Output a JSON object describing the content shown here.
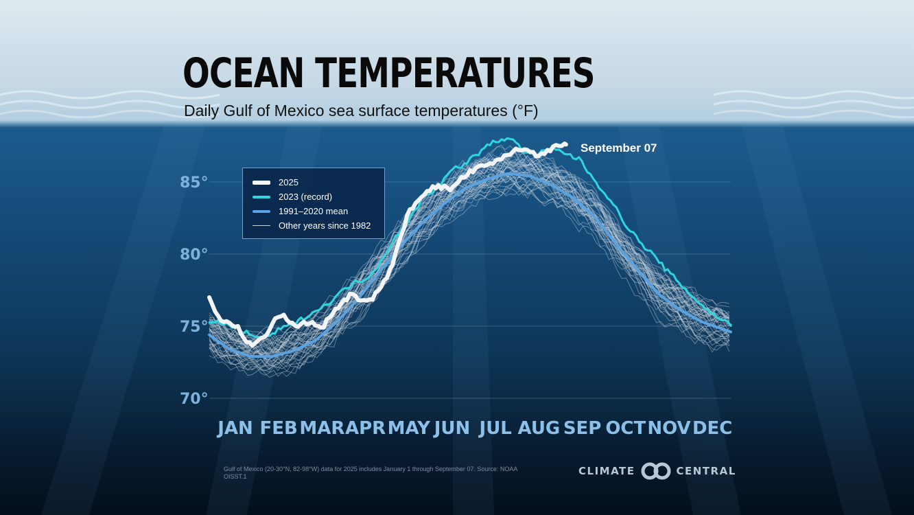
{
  "header": {
    "title": "OCEAN TEMPERATURES",
    "subtitle": "Daily Gulf of Mexico sea surface temperatures (°F)"
  },
  "colors": {
    "y2025": "#f2f4f6",
    "y2023": "#2fd6df",
    "mean": "#5aa2e0",
    "other": "#c8d3dd",
    "axis_label": "#7fb2da",
    "month_label": "#8cc0e8"
  },
  "legend": {
    "items": [
      {
        "label": "2025",
        "color": "#f2f4f6"
      },
      {
        "label": "2023 (record)",
        "color": "#2fd6df"
      },
      {
        "label": "1991–2020 mean",
        "color": "#5aa2e0"
      },
      {
        "label": "Other years since 1982",
        "color": "#c8d3dd"
      }
    ]
  },
  "callout": "September 07",
  "footer": {
    "note": "Gulf of Mexico (20-30°N, 82-98°W) data for 2025 includes January 1 through September 07. Source: NOAA OISST.1",
    "brand_left": "CLIMATE",
    "brand_right": "CENTRAL"
  },
  "chart_data": {
    "type": "line",
    "title": "OCEAN TEMPERATURES",
    "subtitle": "Daily Gulf of Mexico sea surface temperatures (°F)",
    "xlabel": "",
    "ylabel": "",
    "ylim": [
      69,
      88
    ],
    "yticks": [
      70,
      75,
      80,
      85
    ],
    "ytick_labels": [
      "70°",
      "75°",
      "80°",
      "85°"
    ],
    "grid": true,
    "legend_position": "top-left",
    "categories": [
      "JAN",
      "FEB",
      "MAR",
      "APR",
      "MAY",
      "JUN",
      "JUL",
      "AUG",
      "SEP",
      "OCT",
      "NOV",
      "DEC"
    ],
    "series": [
      {
        "name": "2025",
        "x": [
          1,
          10,
          20,
          30,
          40,
          50,
          60,
          70,
          80,
          90,
          100,
          110,
          120,
          130,
          140,
          150,
          160,
          170,
          180,
          190,
          200,
          210,
          220,
          230,
          240,
          250
        ],
        "values": [
          76.9,
          75.3,
          75.0,
          73.6,
          74.3,
          75.9,
          75.0,
          75.3,
          74.9,
          76.3,
          77.2,
          76.6,
          77.4,
          79.6,
          82.9,
          84.2,
          84.7,
          84.5,
          85.5,
          86.0,
          86.3,
          87.0,
          87.3,
          86.9,
          87.3,
          87.6
        ]
      },
      {
        "name": "2023 (record)",
        "x": [
          1,
          10,
          20,
          30,
          40,
          50,
          60,
          70,
          80,
          90,
          100,
          110,
          120,
          130,
          140,
          150,
          160,
          170,
          180,
          190,
          200,
          210,
          220,
          230,
          240,
          250,
          260,
          270,
          280,
          290,
          300,
          310,
          320,
          330,
          340,
          350,
          365
        ],
        "values": [
          75.1,
          75.3,
          74.8,
          74.4,
          74.1,
          74.8,
          75.1,
          75.8,
          76.3,
          77.1,
          77.9,
          78.3,
          79.3,
          81.1,
          82.3,
          83.9,
          84.6,
          85.8,
          86.3,
          87.1,
          87.8,
          88.1,
          87.2,
          86.9,
          87.3,
          87.0,
          86.5,
          85.1,
          83.9,
          82.3,
          81.0,
          80.0,
          78.9,
          77.9,
          76.9,
          76.0,
          75.1
        ]
      },
      {
        "name": "1991–2020 mean",
        "x": [
          1,
          15,
          30,
          45,
          60,
          75,
          90,
          105,
          120,
          135,
          150,
          165,
          180,
          195,
          210,
          225,
          240,
          255,
          270,
          285,
          300,
          315,
          330,
          345,
          365
        ],
        "values": [
          74.4,
          73.4,
          72.9,
          72.9,
          73.3,
          74.0,
          75.3,
          76.9,
          78.8,
          80.6,
          82.2,
          83.5,
          84.6,
          85.2,
          85.6,
          85.4,
          84.8,
          83.9,
          82.6,
          80.7,
          78.9,
          77.2,
          76.1,
          75.3,
          74.6
        ]
      }
    ],
    "other_years_count": 40,
    "other_years_range": [
      1982,
      2024
    ]
  }
}
